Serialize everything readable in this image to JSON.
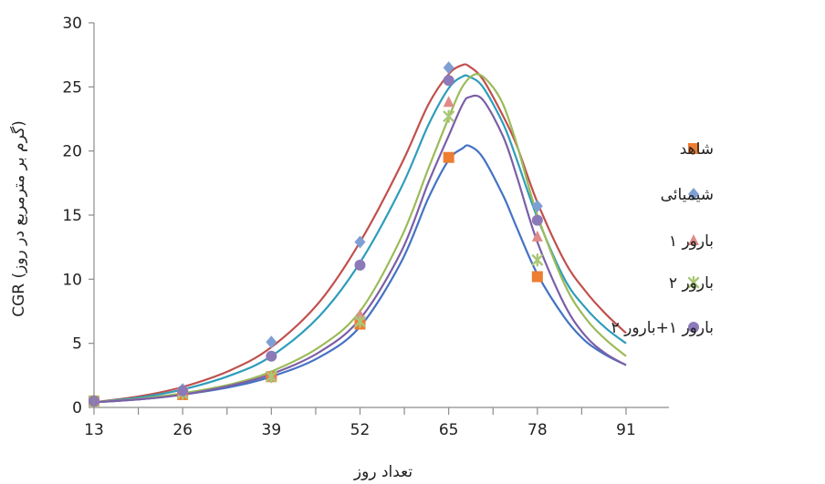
{
  "chart_data": {
    "type": "line",
    "xlabel": "تعداد روز",
    "ylabel": "CGR (گرم بر مترمربع در روز)",
    "x_ticks": [
      "13",
      "26",
      "39",
      "52",
      "65",
      "78",
      "91"
    ],
    "y_ticks": [
      "0",
      "5",
      "10",
      "15",
      "20",
      "25",
      "30"
    ],
    "xlim": [
      13,
      91
    ],
    "ylim": [
      0,
      30
    ],
    "grid": false,
    "legend_position": "right",
    "series": [
      {
        "name": "شاهد",
        "color": "#4472c4",
        "marker_color": "#ed7d31",
        "marker": "square",
        "points": [
          [
            13,
            0.5
          ],
          [
            26,
            1.0
          ],
          [
            39,
            2.4
          ],
          [
            52,
            6.5
          ],
          [
            65,
            19.5
          ],
          [
            78,
            10.2
          ]
        ],
        "curve": [
          [
            13,
            0.4
          ],
          [
            20,
            0.65
          ],
          [
            26,
            1.0
          ],
          [
            33,
            1.6
          ],
          [
            39,
            2.4
          ],
          [
            46,
            3.9
          ],
          [
            52,
            6.3
          ],
          [
            58,
            11.3
          ],
          [
            62,
            16.3
          ],
          [
            65,
            19.3
          ],
          [
            67,
            20.2
          ],
          [
            68,
            20.4
          ],
          [
            70,
            19.5
          ],
          [
            73,
            16.5
          ],
          [
            75,
            14.0
          ],
          [
            78,
            10.4
          ],
          [
            82,
            7.0
          ],
          [
            85,
            5.2
          ],
          [
            88,
            4.1
          ],
          [
            91,
            3.3
          ]
        ]
      },
      {
        "name": "شیمیائی",
        "color": "#c0504d",
        "marker_color": "#7f9fd4",
        "marker": "diamond",
        "points": [
          [
            13,
            0.5
          ],
          [
            26,
            1.4
          ],
          [
            39,
            5.1
          ],
          [
            52,
            12.9
          ],
          [
            65,
            26.5
          ],
          [
            78,
            15.7
          ]
        ],
        "curve": [
          [
            13,
            0.4
          ],
          [
            20,
            0.9
          ],
          [
            26,
            1.6
          ],
          [
            33,
            2.9
          ],
          [
            39,
            4.7
          ],
          [
            46,
            8.2
          ],
          [
            52,
            12.9
          ],
          [
            58,
            18.9
          ],
          [
            62,
            23.6
          ],
          [
            65,
            26.0
          ],
          [
            67,
            26.7
          ],
          [
            68,
            26.6
          ],
          [
            70,
            25.6
          ],
          [
            73,
            22.7
          ],
          [
            75,
            20.4
          ],
          [
            78,
            16.0
          ],
          [
            82,
            11.4
          ],
          [
            85,
            9.1
          ],
          [
            88,
            7.3
          ],
          [
            91,
            5.8
          ]
        ]
      },
      {
        "name": "بارور ۱",
        "color": "#2e9dbb",
        "marker_color": "#e08b87",
        "marker": "triangle",
        "points": [
          [
            13,
            0.5
          ],
          [
            26,
            1.2
          ],
          [
            39,
            2.4
          ],
          [
            52,
            7.2
          ],
          [
            65,
            23.8
          ],
          [
            78,
            13.3
          ]
        ],
        "curve": [
          [
            13,
            0.4
          ],
          [
            20,
            0.8
          ],
          [
            26,
            1.4
          ],
          [
            33,
            2.5
          ],
          [
            39,
            4.0
          ],
          [
            46,
            7.1
          ],
          [
            52,
            11.3
          ],
          [
            58,
            17.1
          ],
          [
            62,
            22.0
          ],
          [
            65,
            24.9
          ],
          [
            67,
            25.8
          ],
          [
            68,
            25.8
          ],
          [
            70,
            25.0
          ],
          [
            73,
            22.1
          ],
          [
            75,
            19.3
          ],
          [
            78,
            14.8
          ],
          [
            82,
            10.0
          ],
          [
            85,
            7.8
          ],
          [
            88,
            6.2
          ],
          [
            91,
            5.0
          ]
        ]
      },
      {
        "name": "بارور ۲",
        "color": "#9bbb59",
        "marker_color": "#a9c777",
        "marker": "x",
        "points": [
          [
            13,
            0.5
          ],
          [
            26,
            1.1
          ],
          [
            39,
            2.4
          ],
          [
            52,
            6.7
          ],
          [
            65,
            22.7
          ],
          [
            78,
            11.5
          ]
        ],
        "curve": [
          [
            13,
            0.4
          ],
          [
            20,
            0.7
          ],
          [
            26,
            1.1
          ],
          [
            33,
            1.8
          ],
          [
            39,
            2.8
          ],
          [
            46,
            4.7
          ],
          [
            52,
            7.5
          ],
          [
            58,
            13.2
          ],
          [
            62,
            18.6
          ],
          [
            65,
            22.6
          ],
          [
            67,
            25.0
          ],
          [
            69,
            26.0
          ],
          [
            71,
            25.3
          ],
          [
            73,
            23.6
          ],
          [
            75,
            20.5
          ],
          [
            78,
            15.0
          ],
          [
            82,
            9.6
          ],
          [
            85,
            7.0
          ],
          [
            88,
            5.3
          ],
          [
            91,
            4.0
          ]
        ]
      },
      {
        "name": "بارور ۱+بارور ۲",
        "color": "#7b5ea7",
        "marker_color": "#8c79b8",
        "marker": "circle",
        "points": [
          [
            13,
            0.5
          ],
          [
            26,
            1.3
          ],
          [
            39,
            4.0
          ],
          [
            52,
            11.1
          ],
          [
            65,
            25.5
          ],
          [
            78,
            14.6
          ]
        ],
        "curve": [
          [
            13,
            0.4
          ],
          [
            20,
            0.65
          ],
          [
            26,
            1.0
          ],
          [
            33,
            1.7
          ],
          [
            39,
            2.6
          ],
          [
            46,
            4.3
          ],
          [
            52,
            6.9
          ],
          [
            58,
            12.1
          ],
          [
            62,
            17.5
          ],
          [
            65,
            21.2
          ],
          [
            67,
            23.6
          ],
          [
            68,
            24.2
          ],
          [
            70,
            24.0
          ],
          [
            73,
            21.1
          ],
          [
            75,
            18.0
          ],
          [
            78,
            12.9
          ],
          [
            82,
            8.0
          ],
          [
            85,
            5.6
          ],
          [
            88,
            4.2
          ],
          [
            91,
            3.3
          ]
        ]
      }
    ]
  }
}
